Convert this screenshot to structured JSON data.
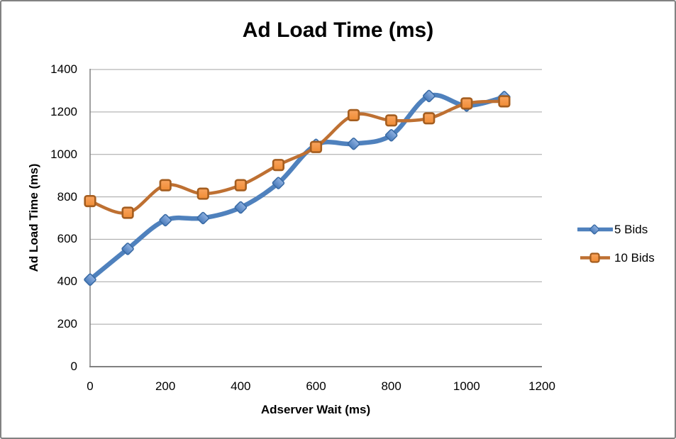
{
  "chart_data": {
    "type": "line",
    "title": "Ad Load Time (ms)",
    "xlabel": "Adserver Wait (ms)",
    "ylabel": "Ad Load Time (ms)",
    "smooth": true,
    "grid": true,
    "legend_position": "right",
    "x": [
      0,
      100,
      200,
      300,
      400,
      500,
      600,
      700,
      800,
      900,
      1000,
      1100
    ],
    "series": [
      {
        "name": "5 Bids",
        "marker": "diamond",
        "line_color": "#4F81BD",
        "line_width": 6.5,
        "marker_fill_top": "#8FB1E1",
        "marker_fill_bottom": "#4A7CBB",
        "marker_stroke": "#3A6BA5",
        "values": [
          410,
          555,
          690,
          700,
          750,
          865,
          1045,
          1050,
          1090,
          1275,
          1230,
          1270
        ]
      },
      {
        "name": "10 Bids",
        "marker": "square",
        "line_color": "#BE7032",
        "line_width": 4.5,
        "marker_fill_top": "#F9A45F",
        "marker_fill_bottom": "#F08C34",
        "marker_stroke": "#A45D1F",
        "values": [
          780,
          725,
          855,
          815,
          855,
          950,
          1035,
          1185,
          1160,
          1170,
          1240,
          1250
        ]
      }
    ],
    "x_ticks": [
      0,
      200,
      400,
      600,
      800,
      1000,
      1200
    ],
    "y_ticks": [
      0,
      200,
      400,
      600,
      800,
      1000,
      1200,
      1400
    ],
    "xlim": [
      0,
      1200
    ],
    "ylim": [
      0,
      1400
    ],
    "colors": {
      "grid": "#A3A3A3",
      "axis": "#808080",
      "text": "#000000",
      "background": "#FFFFFF",
      "border": "#828282"
    }
  }
}
